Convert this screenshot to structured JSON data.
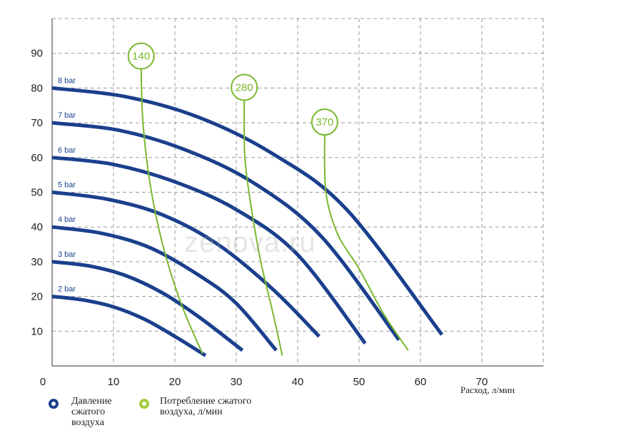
{
  "chart_data": {
    "type": "line",
    "xlabel": "Расход, л/мин",
    "ylabel": "",
    "xlim": [
      0,
      80
    ],
    "ylim": [
      0,
      100
    ],
    "x_ticks": [
      "0",
      "10",
      "20",
      "30",
      "40",
      "50",
      "60",
      "70"
    ],
    "y_ticks": [
      "10",
      "20",
      "30",
      "40",
      "50",
      "60",
      "70",
      "80",
      "90"
    ],
    "grid": true,
    "pressure_color": "#1a3f8c",
    "air_color": "#7ab82e",
    "series": [
      {
        "name": "2 bar",
        "x": [
          0,
          5,
          10,
          15,
          20,
          25
        ],
        "y": [
          20,
          19,
          17,
          13.5,
          8.5,
          3
        ]
      },
      {
        "name": "3 bar",
        "x": [
          0,
          6,
          12,
          18,
          24,
          31
        ],
        "y": [
          30,
          28.8,
          26,
          21,
          14,
          4.5
        ]
      },
      {
        "name": "4 bar",
        "x": [
          0,
          8,
          16,
          24,
          30,
          36.5
        ],
        "y": [
          40,
          38.2,
          34,
          26,
          18,
          4.5
        ]
      },
      {
        "name": "5 bar",
        "x": [
          0,
          9,
          18,
          27,
          36,
          43.5
        ],
        "y": [
          50,
          48,
          43.5,
          35,
          22,
          8.5
        ]
      },
      {
        "name": "6 bar",
        "x": [
          0,
          10,
          20,
          30,
          40,
          51
        ],
        "y": [
          60,
          58,
          53,
          45,
          32,
          6.5
        ]
      },
      {
        "name": "7 bar",
        "x": [
          0,
          11,
          22,
          33,
          44,
          56.5
        ],
        "y": [
          70,
          67.8,
          62,
          52.5,
          37,
          7.5
        ]
      },
      {
        "name": "8 bar",
        "x": [
          0,
          12,
          24,
          36,
          48,
          63.5
        ],
        "y": [
          80,
          77.5,
          71.5,
          61,
          45,
          9
        ]
      }
    ],
    "air_consumption": [
      {
        "name": "140",
        "x": [
          14.5,
          14.8,
          16,
          18,
          21,
          24.5
        ],
        "y": [
          85.5,
          70,
          52,
          35,
          18,
          3.5
        ]
      },
      {
        "name": "280",
        "x": [
          31.3,
          31.4,
          32.5,
          34,
          36,
          37.5
        ],
        "y": [
          76.5,
          60,
          45,
          30,
          15,
          3
        ]
      },
      {
        "name": "370",
        "x": [
          44.4,
          44.6,
          46.5,
          50,
          54,
          58
        ],
        "y": [
          66.5,
          50,
          38,
          28,
          15,
          4.5
        ]
      }
    ]
  },
  "legend": {
    "pressure": "Давление сжатого воздуха",
    "air": "Потребление сжатого воздуха, л/мин"
  },
  "watermark": "zenova.ru"
}
